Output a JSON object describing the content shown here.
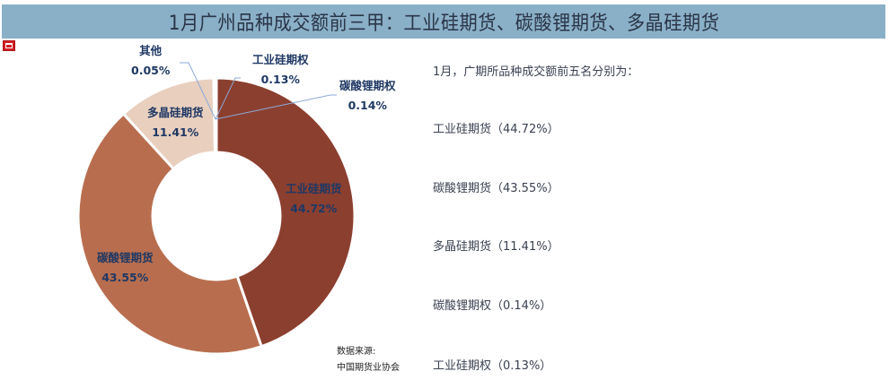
{
  "header": {
    "title": "1月广州品种成交额前三甲：工业硅期货、碳酸锂期货、多晶硅期货",
    "logo_icon": "exchange-logo-icon"
  },
  "chart_data": {
    "type": "pie",
    "subtype": "donut",
    "title": "1月广州品种成交额前三甲：工业硅期货、碳酸锂期货、多晶硅期货",
    "categories": [
      "工业硅期货",
      "碳酸锂期货",
      "多晶硅期货",
      "碳酸锂期权",
      "工业硅期权",
      "其他"
    ],
    "values": [
      44.72,
      43.55,
      11.41,
      0.14,
      0.13,
      0.05
    ],
    "unit": "%",
    "labels": [
      {
        "name": "工业硅期货",
        "value": "44.72%"
      },
      {
        "name": "碳酸锂期货",
        "value": "43.55%"
      },
      {
        "name": "多晶硅期货",
        "value": "11.41%"
      },
      {
        "name": "碳酸锂期权",
        "value": "0.14%"
      },
      {
        "name": "工业硅期权",
        "value": "0.13%"
      },
      {
        "name": "其他",
        "value": "0.05%"
      }
    ],
    "colors": [
      "#8B3F2F",
      "#B86E4E",
      "#E8CFBE",
      "#8B3F2F",
      "#B86E4E",
      "#E8CFBE"
    ],
    "legend": "none",
    "label_color": "#1F3864"
  },
  "source": {
    "label": "数据来源:",
    "value": "中国期货业协会"
  },
  "summary": {
    "intro": "1月，广期所品种成交额前五名分别为：",
    "items": [
      "工业硅期货（44.72%）",
      "碳酸锂期货（43.55%）",
      "多晶硅期货（11.41%）",
      "碳酸锂期权（0.14%）",
      "工业硅期权（0.13%）"
    ]
  }
}
